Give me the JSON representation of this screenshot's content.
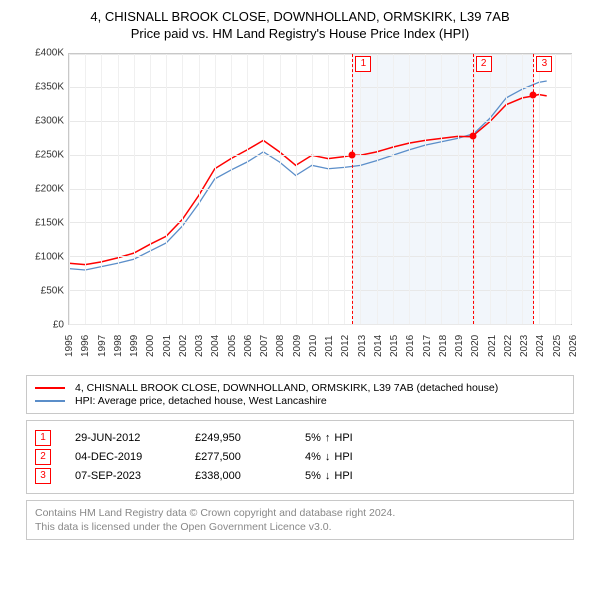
{
  "title_line1": "4, CHISNALL BROOK CLOSE, DOWNHOLLAND, ORMSKIRK, L39 7AB",
  "title_line2": "Price paid vs. HM Land Registry's House Price Index (HPI)",
  "chart": {
    "type": "line",
    "background_color": "#ffffff",
    "grid_color": "#e8e8e8",
    "axis_color": "#c8c8c8",
    "x_years": [
      1995,
      1996,
      1997,
      1998,
      1999,
      2000,
      2001,
      2002,
      2003,
      2004,
      2005,
      2006,
      2007,
      2008,
      2009,
      2010,
      2011,
      2012,
      2013,
      2014,
      2015,
      2016,
      2017,
      2018,
      2019,
      2020,
      2021,
      2022,
      2023,
      2024,
      2025,
      2026
    ],
    "xlim": [
      1995,
      2026
    ],
    "ylim": [
      0,
      400000
    ],
    "ytick_step": 50000,
    "yticks": [
      "£0",
      "£50K",
      "£100K",
      "£150K",
      "£200K",
      "£250K",
      "£300K",
      "£350K",
      "£400K"
    ],
    "pale_band_years": [
      2012.5,
      2023.7
    ],
    "pale_band_color": "#f2f6fb",
    "series": [
      {
        "name": "4, CHISNALL BROOK CLOSE, DOWNHOLLAND, ORMSKIRK, L39 7AB (detached house)",
        "color": "#ff0000",
        "width": 1.5,
        "points": [
          [
            1995,
            90000
          ],
          [
            1996,
            88000
          ],
          [
            1997,
            92000
          ],
          [
            1998,
            98000
          ],
          [
            1999,
            105000
          ],
          [
            2000,
            118000
          ],
          [
            2001,
            130000
          ],
          [
            2002,
            155000
          ],
          [
            2003,
            190000
          ],
          [
            2004,
            230000
          ],
          [
            2005,
            245000
          ],
          [
            2006,
            258000
          ],
          [
            2007,
            272000
          ],
          [
            2008,
            255000
          ],
          [
            2009,
            235000
          ],
          [
            2010,
            250000
          ],
          [
            2011,
            245000
          ],
          [
            2012,
            248000
          ],
          [
            2012.5,
            249950
          ],
          [
            2013,
            250000
          ],
          [
            2014,
            255000
          ],
          [
            2015,
            262000
          ],
          [
            2016,
            268000
          ],
          [
            2017,
            272000
          ],
          [
            2018,
            275000
          ],
          [
            2019,
            278000
          ],
          [
            2019.9,
            277500
          ],
          [
            2020,
            280000
          ],
          [
            2021,
            300000
          ],
          [
            2022,
            325000
          ],
          [
            2023,
            335000
          ],
          [
            2023.7,
            338000
          ],
          [
            2024,
            340000
          ],
          [
            2024.5,
            338000
          ]
        ]
      },
      {
        "name": "HPI: Average price, detached house, West Lancashire",
        "color": "#5b8ec9",
        "width": 1.3,
        "points": [
          [
            1995,
            82000
          ],
          [
            1996,
            80000
          ],
          [
            1997,
            85000
          ],
          [
            1998,
            90000
          ],
          [
            1999,
            96000
          ],
          [
            2000,
            108000
          ],
          [
            2001,
            120000
          ],
          [
            2002,
            145000
          ],
          [
            2003,
            178000
          ],
          [
            2004,
            215000
          ],
          [
            2005,
            228000
          ],
          [
            2006,
            240000
          ],
          [
            2007,
            255000
          ],
          [
            2008,
            240000
          ],
          [
            2009,
            220000
          ],
          [
            2010,
            235000
          ],
          [
            2011,
            230000
          ],
          [
            2012,
            232000
          ],
          [
            2013,
            235000
          ],
          [
            2014,
            242000
          ],
          [
            2015,
            250000
          ],
          [
            2016,
            258000
          ],
          [
            2017,
            265000
          ],
          [
            2018,
            270000
          ],
          [
            2019,
            275000
          ],
          [
            2020,
            282000
          ],
          [
            2021,
            305000
          ],
          [
            2022,
            335000
          ],
          [
            2023,
            348000
          ],
          [
            2024,
            358000
          ],
          [
            2024.5,
            360000
          ]
        ]
      }
    ],
    "markers": [
      {
        "n": "1",
        "year": 2012.5,
        "price": 249950
      },
      {
        "n": "2",
        "year": 2019.93,
        "price": 277500
      },
      {
        "n": "3",
        "year": 2023.68,
        "price": 338000
      }
    ],
    "marker_line_color": "#ff0000",
    "marker_box_border": "#ff0000",
    "marker_box_text": "#ff0000",
    "dot_color": "#ff0000"
  },
  "legend": {
    "rows": [
      {
        "color": "#ff0000",
        "label": "4, CHISNALL BROOK CLOSE, DOWNHOLLAND, ORMSKIRK, L39 7AB (detached house)"
      },
      {
        "color": "#5b8ec9",
        "label": "HPI: Average price, detached house, West Lancashire"
      }
    ]
  },
  "events": [
    {
      "n": "1",
      "date": "29-JUN-2012",
      "price": "£249,950",
      "diff": "5%",
      "arrow": "↑",
      "suffix": "HPI"
    },
    {
      "n": "2",
      "date": "04-DEC-2019",
      "price": "£277,500",
      "diff": "4%",
      "arrow": "↓",
      "suffix": "HPI"
    },
    {
      "n": "3",
      "date": "07-SEP-2023",
      "price": "£338,000",
      "diff": "5%",
      "arrow": "↓",
      "suffix": "HPI"
    }
  ],
  "footer_line1": "Contains HM Land Registry data © Crown copyright and database right 2024.",
  "footer_line2": "This data is licensed under the Open Government Licence v3.0."
}
